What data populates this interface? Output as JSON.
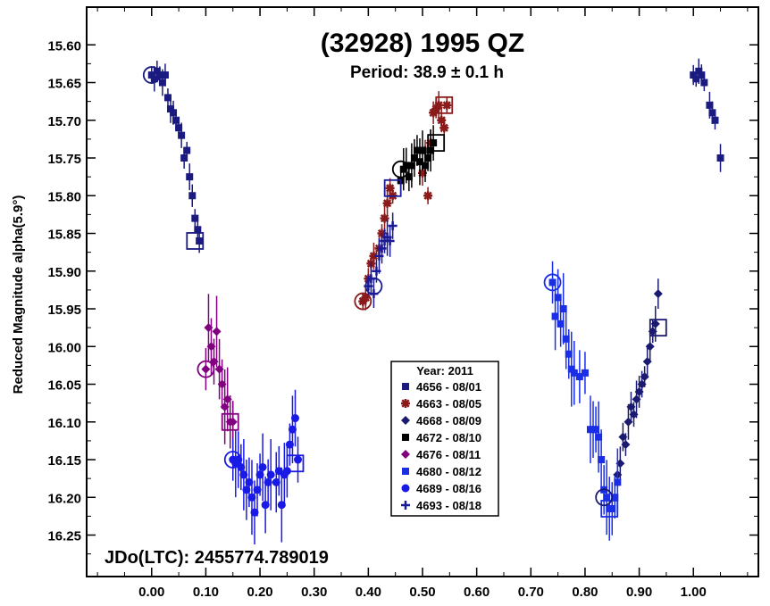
{
  "chart_data": {
    "type": "scatter",
    "title": "(32928) 1995 QZ",
    "subtitle": "Period: 38.9 ± 0.1 h",
    "ylabel": "Reduced Magnitude alpha(5.9°)",
    "xlabel": "",
    "footer": "JDo(LTC): 2455774.789019",
    "xlim": [
      -0.12,
      1.12
    ],
    "ylim": [
      15.55,
      16.305
    ],
    "y_inverted": true,
    "x_ticks": [
      "0.00",
      "0.10",
      "0.20",
      "0.30",
      "0.40",
      "0.50",
      "0.60",
      "0.70",
      "0.80",
      "0.90",
      "1.00"
    ],
    "y_ticks": [
      "15.60",
      "15.65",
      "15.70",
      "15.75",
      "15.80",
      "15.85",
      "15.90",
      "15.95",
      "16.00",
      "16.05",
      "16.10",
      "16.15",
      "16.20",
      "16.25"
    ],
    "legend": {
      "title": "Year: 2011",
      "placement": "center-bottom"
    },
    "series": [
      {
        "name": "4656 - 08/01",
        "color": "#1a1a80",
        "marker": "square",
        "points": [
          [
            0.0,
            15.64
          ],
          [
            0.005,
            15.645
          ],
          [
            0.01,
            15.635
          ],
          [
            0.015,
            15.64
          ],
          [
            0.02,
            15.65
          ],
          [
            0.025,
            15.64
          ],
          [
            0.03,
            15.67
          ],
          [
            0.035,
            15.685
          ],
          [
            0.04,
            15.69
          ],
          [
            0.045,
            15.7
          ],
          [
            0.05,
            15.71
          ],
          [
            0.055,
            15.72
          ],
          [
            0.06,
            15.75
          ],
          [
            0.065,
            15.74
          ],
          [
            0.07,
            15.775
          ],
          [
            0.075,
            15.8
          ],
          [
            0.08,
            15.83
          ],
          [
            0.085,
            15.845
          ],
          [
            0.088,
            15.86
          ],
          [
            1.0,
            15.64
          ],
          [
            1.005,
            15.645
          ],
          [
            1.01,
            15.635
          ],
          [
            1.015,
            15.64
          ],
          [
            1.02,
            15.65
          ],
          [
            1.03,
            15.68
          ],
          [
            1.035,
            15.69
          ],
          [
            1.04,
            15.7
          ],
          [
            1.05,
            15.75
          ]
        ],
        "err": 0.015
      },
      {
        "name": "4663 - 08/05",
        "color": "#8b1a1a",
        "marker": "asterisk",
        "points": [
          [
            0.39,
            15.94
          ],
          [
            0.395,
            15.935
          ],
          [
            0.4,
            15.91
          ],
          [
            0.405,
            15.89
          ],
          [
            0.41,
            15.88
          ],
          [
            0.42,
            15.87
          ],
          [
            0.425,
            15.85
          ],
          [
            0.43,
            15.83
          ],
          [
            0.435,
            15.81
          ],
          [
            0.44,
            15.79
          ],
          [
            0.445,
            15.8
          ],
          [
            0.5,
            15.77
          ],
          [
            0.505,
            15.74
          ],
          [
            0.51,
            15.8
          ],
          [
            0.515,
            15.73
          ],
          [
            0.52,
            15.69
          ],
          [
            0.525,
            15.685
          ],
          [
            0.53,
            15.68
          ],
          [
            0.535,
            15.7
          ],
          [
            0.54,
            15.71
          ],
          [
            0.545,
            15.68
          ]
        ],
        "err": 0.015
      },
      {
        "name": "4668 - 08/09",
        "color": "#1a1a70",
        "marker": "diamond",
        "points": [
          [
            0.86,
            16.17
          ],
          [
            0.865,
            16.155
          ],
          [
            0.87,
            16.12
          ],
          [
            0.875,
            16.13
          ],
          [
            0.88,
            16.1
          ],
          [
            0.885,
            16.08
          ],
          [
            0.89,
            16.09
          ],
          [
            0.895,
            16.07
          ],
          [
            0.9,
            16.06
          ],
          [
            0.905,
            16.05
          ],
          [
            0.91,
            16.04
          ],
          [
            0.915,
            16.02
          ],
          [
            0.92,
            16.0
          ],
          [
            0.925,
            15.98
          ],
          [
            0.93,
            15.97
          ],
          [
            0.935,
            15.93
          ]
        ],
        "err": 0.02
      },
      {
        "name": "4672 - 08/10",
        "color": "#000000",
        "marker": "square",
        "points": [
          [
            0.46,
            15.78
          ],
          [
            0.465,
            15.765
          ],
          [
            0.47,
            15.76
          ],
          [
            0.475,
            15.775
          ],
          [
            0.48,
            15.76
          ],
          [
            0.485,
            15.75
          ],
          [
            0.49,
            15.74
          ],
          [
            0.495,
            15.755
          ],
          [
            0.5,
            15.74
          ],
          [
            0.505,
            15.76
          ],
          [
            0.51,
            15.75
          ],
          [
            0.515,
            15.74
          ],
          [
            0.52,
            15.73
          ]
        ],
        "err": 0.025
      },
      {
        "name": "4676 - 08/11",
        "color": "#800080",
        "marker": "diamond",
        "points": [
          [
            0.1,
            16.03
          ],
          [
            0.105,
            15.975
          ],
          [
            0.11,
            16.0
          ],
          [
            0.115,
            16.02
          ],
          [
            0.12,
            15.98
          ],
          [
            0.125,
            16.03
          ],
          [
            0.13,
            16.05
          ],
          [
            0.135,
            16.08
          ],
          [
            0.14,
            16.07
          ],
          [
            0.145,
            16.1
          ],
          [
            0.15,
            16.1
          ]
        ],
        "err": 0.04
      },
      {
        "name": "4680 - 08/12",
        "color": "#1a2ee6",
        "marker": "square",
        "points": [
          [
            0.74,
            15.915
          ],
          [
            0.745,
            15.96
          ],
          [
            0.75,
            15.935
          ],
          [
            0.755,
            15.97
          ],
          [
            0.76,
            15.95
          ],
          [
            0.765,
            15.99
          ],
          [
            0.77,
            16.01
          ],
          [
            0.775,
            16.03
          ],
          [
            0.78,
            16.035
          ],
          [
            0.79,
            16.04
          ],
          [
            0.8,
            16.035
          ],
          [
            0.81,
            16.11
          ],
          [
            0.815,
            16.11
          ],
          [
            0.82,
            16.11
          ],
          [
            0.825,
            16.12
          ],
          [
            0.83,
            16.15
          ],
          [
            0.835,
            16.19
          ],
          [
            0.84,
            16.2
          ],
          [
            0.845,
            16.215
          ],
          [
            0.85,
            16.215
          ],
          [
            0.855,
            16.2
          ],
          [
            0.86,
            16.18
          ]
        ],
        "err": 0.04
      },
      {
        "name": "4689 - 08/16",
        "color": "#1a1ae6",
        "marker": "circle",
        "points": [
          [
            0.15,
            16.15
          ],
          [
            0.155,
            16.155
          ],
          [
            0.16,
            16.15
          ],
          [
            0.165,
            16.16
          ],
          [
            0.17,
            16.17
          ],
          [
            0.175,
            16.19
          ],
          [
            0.18,
            16.18
          ],
          [
            0.185,
            16.2
          ],
          [
            0.19,
            16.22
          ],
          [
            0.195,
            16.19
          ],
          [
            0.2,
            16.17
          ],
          [
            0.205,
            16.16
          ],
          [
            0.21,
            16.21
          ],
          [
            0.215,
            16.18
          ],
          [
            0.22,
            16.17
          ],
          [
            0.23,
            16.18
          ],
          [
            0.235,
            16.165
          ],
          [
            0.24,
            16.21
          ],
          [
            0.245,
            16.17
          ],
          [
            0.25,
            16.165
          ],
          [
            0.255,
            16.13
          ],
          [
            0.26,
            16.11
          ],
          [
            0.265,
            16.095
          ],
          [
            0.27,
            16.15
          ]
        ],
        "err": 0.04
      },
      {
        "name": "4693 - 08/18",
        "color": "#1a1a99",
        "marker": "plus",
        "points": [
          [
            0.4,
            15.92
          ],
          [
            0.405,
            15.91
          ],
          [
            0.41,
            15.93
          ],
          [
            0.415,
            15.9
          ],
          [
            0.42,
            15.88
          ],
          [
            0.425,
            15.87
          ],
          [
            0.43,
            15.86
          ],
          [
            0.435,
            15.855
          ],
          [
            0.44,
            15.86
          ],
          [
            0.445,
            15.84
          ]
        ],
        "err": 0.02
      }
    ],
    "open_markers": [
      {
        "x": 0.0,
        "y": 15.64,
        "shape": "circle",
        "color": "#1a1a80"
      },
      {
        "x": 0.08,
        "y": 15.86,
        "shape": "square",
        "color": "#1a1a80"
      },
      {
        "x": 0.1,
        "y": 16.03,
        "shape": "circle",
        "color": "#800080"
      },
      {
        "x": 0.145,
        "y": 16.1,
        "shape": "square",
        "color": "#800080"
      },
      {
        "x": 0.15,
        "y": 16.15,
        "shape": "circle",
        "color": "#1a1ae6"
      },
      {
        "x": 0.265,
        "y": 16.155,
        "shape": "square",
        "color": "#1a1ae6"
      },
      {
        "x": 0.39,
        "y": 15.94,
        "shape": "circle",
        "color": "#8b1a1a"
      },
      {
        "x": 0.41,
        "y": 15.92,
        "shape": "circle",
        "color": "#1a1a99"
      },
      {
        "x": 0.445,
        "y": 15.79,
        "shape": "square",
        "color": "#1a1a99"
      },
      {
        "x": 0.46,
        "y": 15.765,
        "shape": "circle",
        "color": "#000000"
      },
      {
        "x": 0.525,
        "y": 15.73,
        "shape": "square",
        "color": "#000000"
      },
      {
        "x": 0.54,
        "y": 15.68,
        "shape": "square",
        "color": "#8b1a1a"
      },
      {
        "x": 0.74,
        "y": 15.915,
        "shape": "circle",
        "color": "#1a2ee6"
      },
      {
        "x": 0.845,
        "y": 16.215,
        "shape": "square",
        "color": "#1a2ee6"
      },
      {
        "x": 0.835,
        "y": 16.2,
        "shape": "circle",
        "color": "#1a1a70"
      },
      {
        "x": 0.935,
        "y": 15.975,
        "shape": "square",
        "color": "#1a1a70"
      }
    ]
  }
}
